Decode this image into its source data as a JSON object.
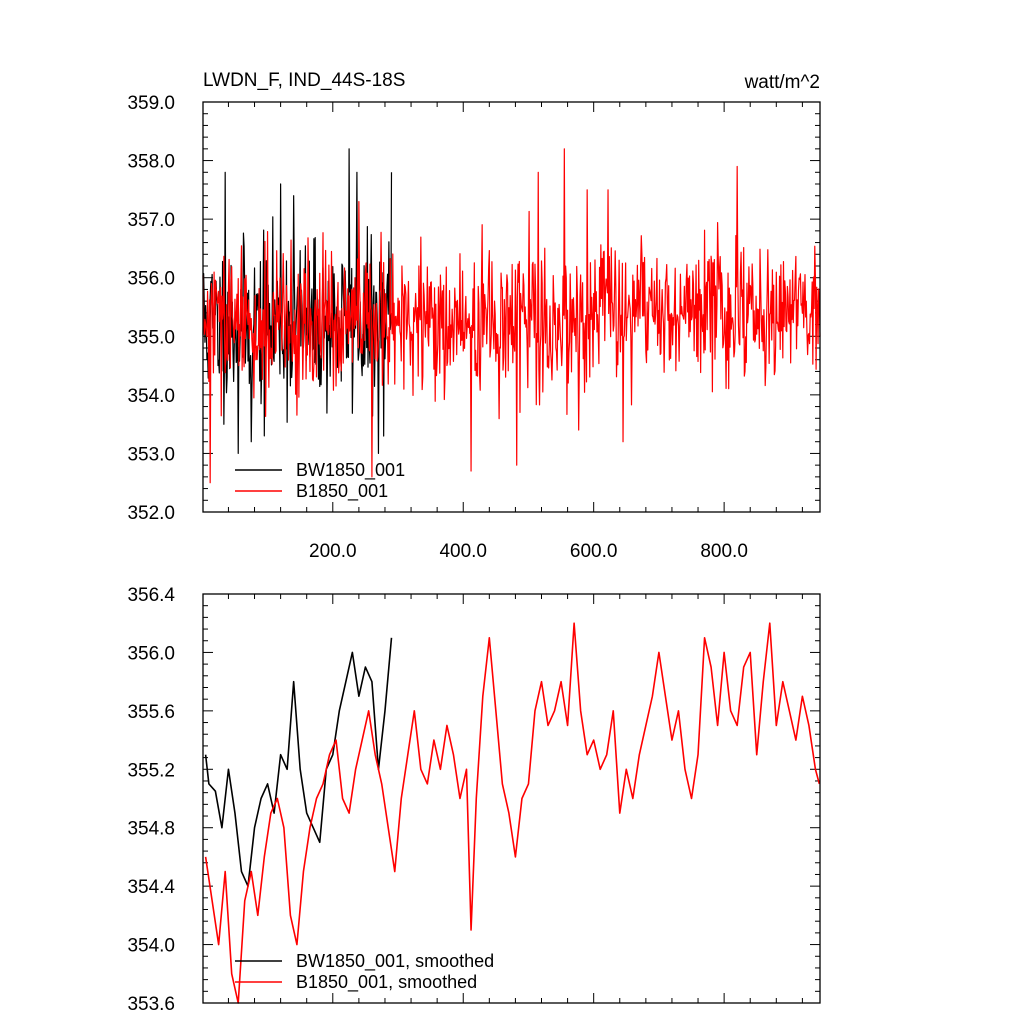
{
  "chart_data": [
    {
      "type": "line",
      "title": "LWDN_F, IND_44S-18S",
      "units": "watt/m^2",
      "xlim": [
        1,
        947
      ],
      "ylim": [
        352.0,
        359.0
      ],
      "xticks": [
        200,
        400,
        600,
        800
      ],
      "xtick_labels": [
        "200.0",
        "400.0",
        "600.0",
        "800.0"
      ],
      "yticks": [
        352,
        353,
        354,
        355,
        356,
        357,
        358,
        359
      ],
      "ytick_labels": [
        "352.0",
        "353.0",
        "354.0",
        "355.0",
        "356.0",
        "357.0",
        "358.0",
        "359.0"
      ],
      "legend_position": "bottom-left",
      "series": [
        {
          "name": "BW1850_001",
          "color": "#000000",
          "x_range": [
            1,
            290
          ],
          "mean": 355.2,
          "sd": 0.9,
          "seed": 11,
          "peaks": [
            [
              35,
              357.8
            ],
            [
              120,
              357.6
            ],
            [
              140,
              357.4
            ],
            [
              225,
              358.2
            ],
            [
              237,
              357.8
            ],
            [
              290,
              357.8
            ]
          ],
          "lows": [
            [
              55,
              353.0
            ],
            [
              75,
              353.2
            ],
            [
              95,
              353.3
            ],
            [
              270,
              353.0
            ]
          ]
        },
        {
          "name": "B1850_001",
          "color": "#ff0000",
          "x_range": [
            1,
            947
          ],
          "mean": 355.2,
          "sd": 0.8,
          "seed": 29,
          "peaks": [
            [
              555,
              358.2
            ],
            [
              820,
              357.9
            ],
            [
              240,
              357.3
            ],
            [
              515,
              357.8
            ],
            [
              590,
              357.5
            ]
          ],
          "lows": [
            [
              12,
              352.5
            ],
            [
              260,
              352.6
            ],
            [
              412,
              352.7
            ],
            [
              482,
              352.8
            ],
            [
              645,
              353.2
            ]
          ]
        }
      ]
    },
    {
      "type": "line",
      "xlim": [
        1,
        947
      ],
      "ylim": [
        353.6,
        356.4
      ],
      "yticks": [
        353.6,
        354.0,
        354.4,
        354.8,
        355.2,
        355.6,
        356.0,
        356.4
      ],
      "ytick_labels": [
        "353.6",
        "354.0",
        "354.4",
        "354.8",
        "355.2",
        "355.6",
        "356.0",
        "356.4"
      ],
      "legend_position": "bottom-left",
      "series": [
        {
          "name": "BW1850_001, smoothed",
          "color": "#000000",
          "x": [
            5,
            10,
            20,
            30,
            40,
            50,
            60,
            70,
            80,
            90,
            100,
            110,
            120,
            130,
            140,
            150,
            160,
            170,
            180,
            190,
            200,
            210,
            220,
            230,
            240,
            250,
            260,
            270,
            280,
            290
          ],
          "y": [
            355.3,
            355.1,
            355.05,
            354.8,
            355.2,
            354.9,
            354.5,
            354.4,
            354.8,
            355.0,
            355.1,
            354.9,
            355.3,
            355.2,
            355.8,
            355.2,
            354.9,
            354.8,
            354.7,
            355.2,
            355.3,
            355.6,
            355.8,
            356.0,
            355.7,
            355.9,
            355.8,
            355.2,
            355.6,
            356.1
          ]
        },
        {
          "name": "B1850_001, smoothed",
          "color": "#ff0000",
          "x": [
            5,
            15,
            25,
            35,
            45,
            55,
            65,
            75,
            85,
            95,
            105,
            115,
            125,
            135,
            145,
            155,
            165,
            175,
            185,
            195,
            205,
            215,
            225,
            235,
            245,
            255,
            265,
            275,
            285,
            295,
            305,
            315,
            325,
            335,
            345,
            355,
            365,
            375,
            385,
            395,
            405,
            412,
            420,
            430,
            440,
            450,
            460,
            470,
            480,
            490,
            500,
            510,
            520,
            530,
            540,
            550,
            560,
            570,
            580,
            590,
            600,
            610,
            620,
            630,
            640,
            650,
            660,
            670,
            680,
            690,
            700,
            710,
            720,
            730,
            740,
            750,
            760,
            770,
            780,
            790,
            800,
            810,
            820,
            830,
            840,
            850,
            860,
            870,
            880,
            890,
            900,
            910,
            920,
            930,
            940,
            946
          ],
          "y": [
            354.6,
            354.3,
            354.0,
            354.5,
            353.8,
            353.6,
            354.3,
            354.5,
            354.2,
            354.6,
            354.9,
            355.0,
            354.8,
            354.2,
            354.0,
            354.5,
            354.8,
            355.0,
            355.1,
            355.3,
            355.4,
            355.0,
            354.9,
            355.2,
            355.4,
            355.6,
            355.3,
            355.1,
            354.8,
            354.5,
            355.0,
            355.3,
            355.6,
            355.2,
            355.1,
            355.4,
            355.2,
            355.5,
            355.3,
            355.0,
            355.2,
            354.1,
            355.0,
            355.7,
            356.1,
            355.6,
            355.1,
            354.9,
            354.6,
            355.0,
            355.1,
            355.6,
            355.8,
            355.5,
            355.6,
            355.8,
            355.5,
            356.2,
            355.6,
            355.3,
            355.4,
            355.2,
            355.3,
            355.6,
            354.9,
            355.2,
            355.0,
            355.3,
            355.5,
            355.7,
            356.0,
            355.7,
            355.4,
            355.6,
            355.2,
            355.0,
            355.3,
            356.1,
            355.9,
            355.5,
            356.0,
            355.6,
            355.5,
            355.9,
            356.0,
            355.3,
            355.8,
            356.2,
            355.5,
            355.8,
            355.6,
            355.4,
            355.7,
            355.5,
            355.2,
            355.1
          ]
        }
      ]
    }
  ]
}
